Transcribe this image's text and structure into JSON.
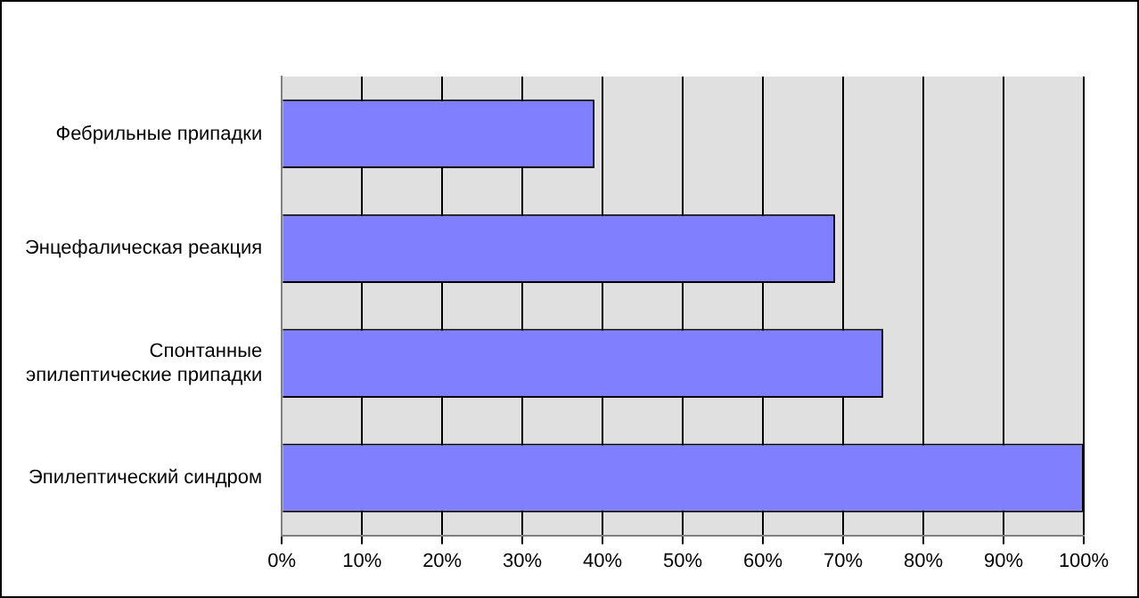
{
  "chart_data": {
    "type": "bar",
    "orientation": "horizontal",
    "categories": [
      "Фебрильные припадки",
      "Энцефалическая реакция",
      "Спонтанные эпилептические припадки",
      "Эпилептический синдром"
    ],
    "values": [
      39,
      69,
      75,
      100
    ],
    "color": "#8080ff",
    "xlim": [
      0,
      100
    ],
    "xticks": [
      {
        "value": 0,
        "label": "0%"
      },
      {
        "value": 10,
        "label": "10%"
      },
      {
        "value": 20,
        "label": "20%"
      },
      {
        "value": 30,
        "label": "30%"
      },
      {
        "value": 40,
        "label": "40%"
      },
      {
        "value": 50,
        "label": "50%"
      },
      {
        "value": 60,
        "label": "60%"
      },
      {
        "value": 70,
        "label": "70%"
      },
      {
        "value": 80,
        "label": "80%"
      },
      {
        "value": 90,
        "label": "90%"
      },
      {
        "value": 100,
        "label": "100%"
      }
    ],
    "grid": "x",
    "legend": false
  }
}
